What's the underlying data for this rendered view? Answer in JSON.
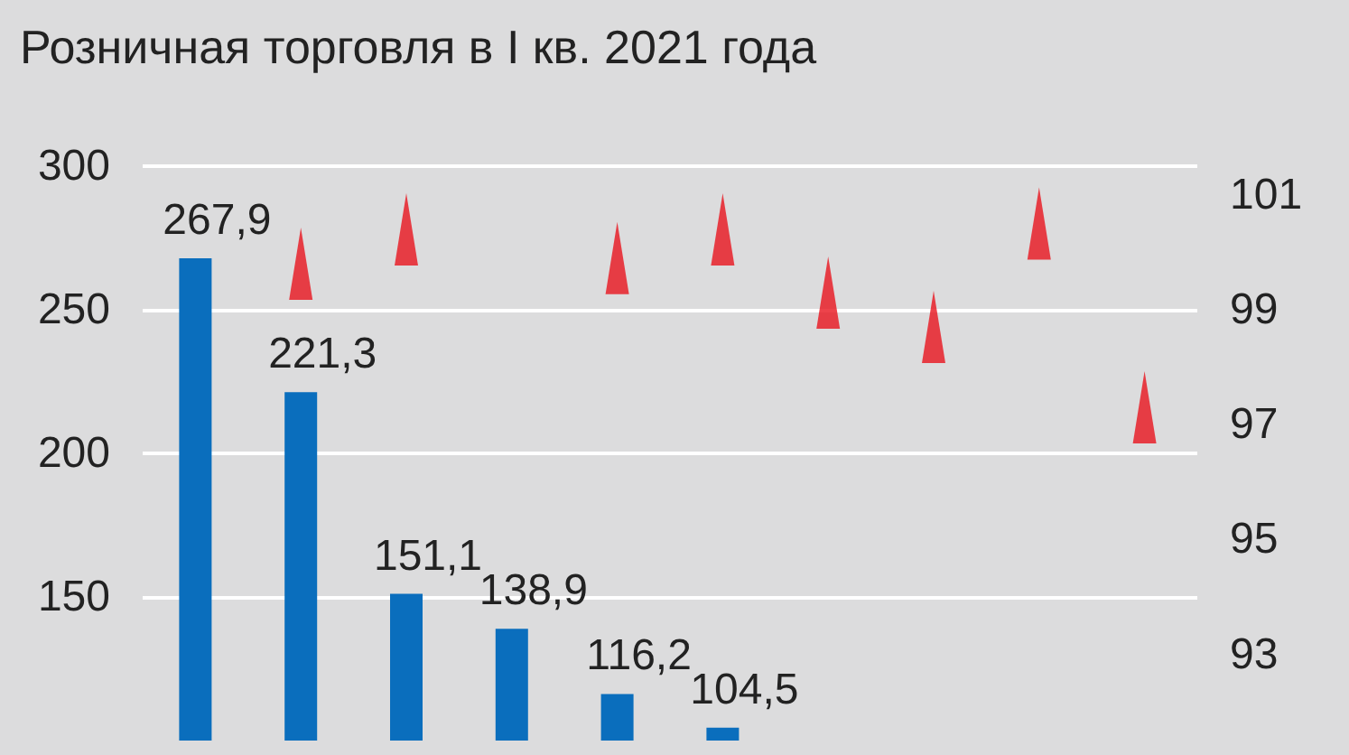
{
  "chart_data": {
    "type": "bar",
    "title": "Розничная торговля в I кв. 2021 года",
    "categories": [
      null,
      null,
      null,
      null,
      null,
      null,
      null,
      null,
      null,
      null
    ],
    "series": [
      {
        "color": "#0a6ebd",
        "values": [
          267.9,
          221.3,
          151.1,
          138.9,
          116.2,
          104.5,
          null,
          null,
          null,
          null
        ],
        "value_labels": [
          "267,9",
          "221,3",
          "151,1",
          "138,9",
          "116,2",
          "104,5",
          null,
          null,
          null,
          null
        ]
      },
      {
        "type": "scatter",
        "axis": "y2",
        "color": "#e8141e",
        "marker": "triangle",
        "values": [
          null,
          99.8,
          100.4,
          null,
          99.9,
          100.4,
          99.3,
          98.7,
          100.5,
          97.3
        ]
      }
    ],
    "ylim": [
      100,
      300
    ],
    "yticks": [
      150,
      200,
      250,
      300
    ],
    "y2lim": [
      91.5,
      101.5
    ],
    "y2ticks": [
      93,
      95,
      97,
      99,
      101
    ],
    "grid": "y"
  }
}
